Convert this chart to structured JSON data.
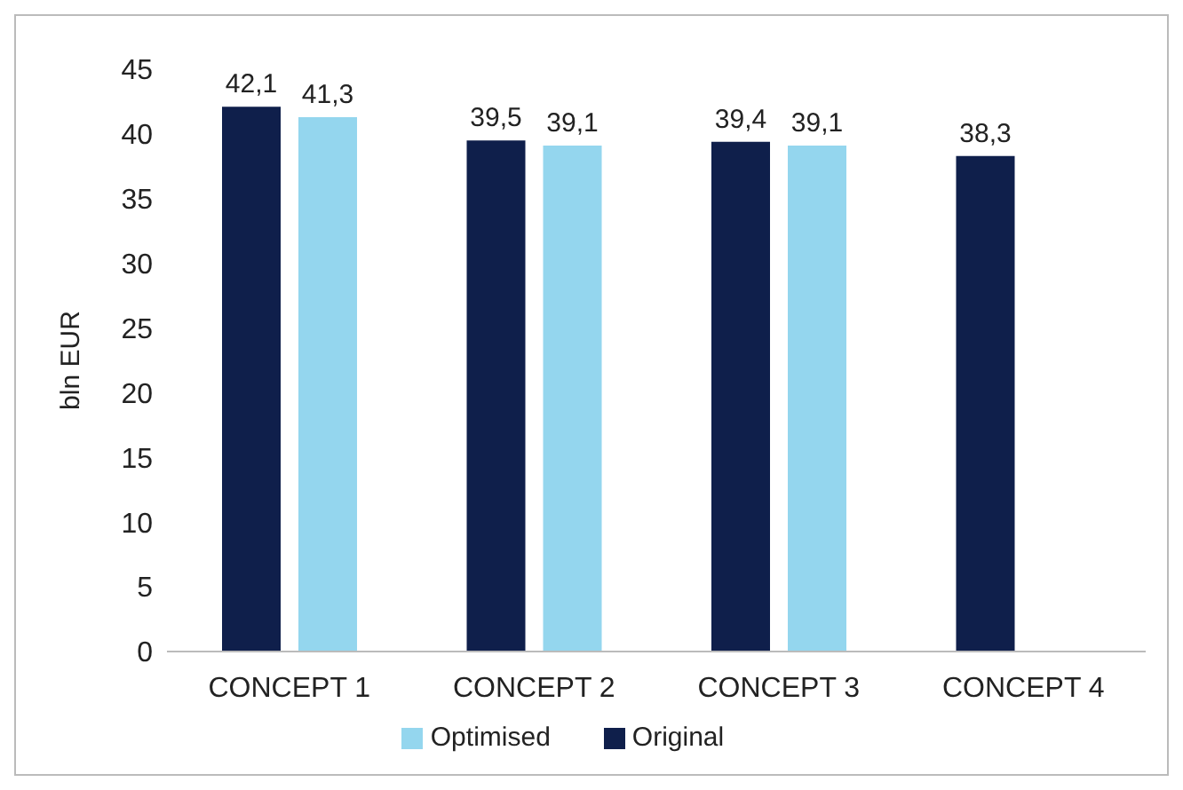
{
  "chart_data": {
    "type": "bar",
    "ylabel": "bln EUR",
    "categories": [
      "CONCEPT 1",
      "CONCEPT 2",
      "CONCEPT 3",
      "CONCEPT 4"
    ],
    "series": [
      {
        "name": "Original",
        "color": "#0f1f4b",
        "values": [
          42.1,
          39.5,
          39.4,
          38.3
        ],
        "value_labels": [
          "42,1",
          "39,5",
          "39,4",
          "38,3"
        ]
      },
      {
        "name": "Optimised",
        "color": "#94d6ee",
        "values": [
          41.3,
          39.1,
          39.1,
          null
        ],
        "value_labels": [
          "41,3",
          "39,1",
          "39,1",
          null
        ]
      }
    ],
    "ylim": [
      0,
      45
    ],
    "yticks": [
      0,
      5,
      10,
      15,
      20,
      25,
      30,
      35,
      40,
      45
    ],
    "grid": false,
    "legend": "bottom"
  }
}
